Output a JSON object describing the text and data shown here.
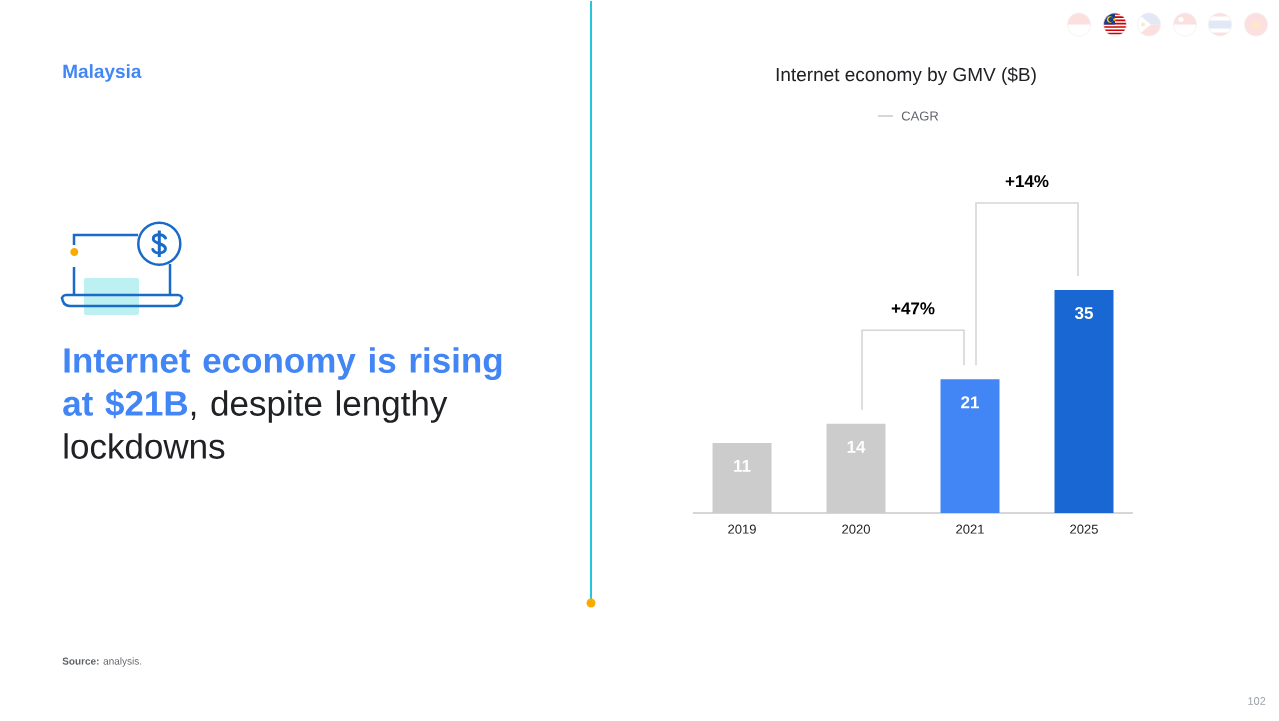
{
  "chart_data": {
    "type": "bar",
    "title": "Internet economy by GMV ($B)",
    "categories": [
      "2019",
      "2020",
      "2021",
      "2025"
    ],
    "values": [
      11,
      14,
      21,
      35
    ],
    "colors": [
      "#cccccc",
      "#cccccc",
      "#4285f4",
      "#1967d2"
    ],
    "data_labels": true,
    "tick_labels": "x",
    "annotations": [
      "Malaysia",
      "**Internet economy is rising at $21B**, despite lengthy lockdowns",
      "CAGR",
      "+47%",
      "+14%",
      "**Source:** analysis.",
      "102"
    ]
  }
}
